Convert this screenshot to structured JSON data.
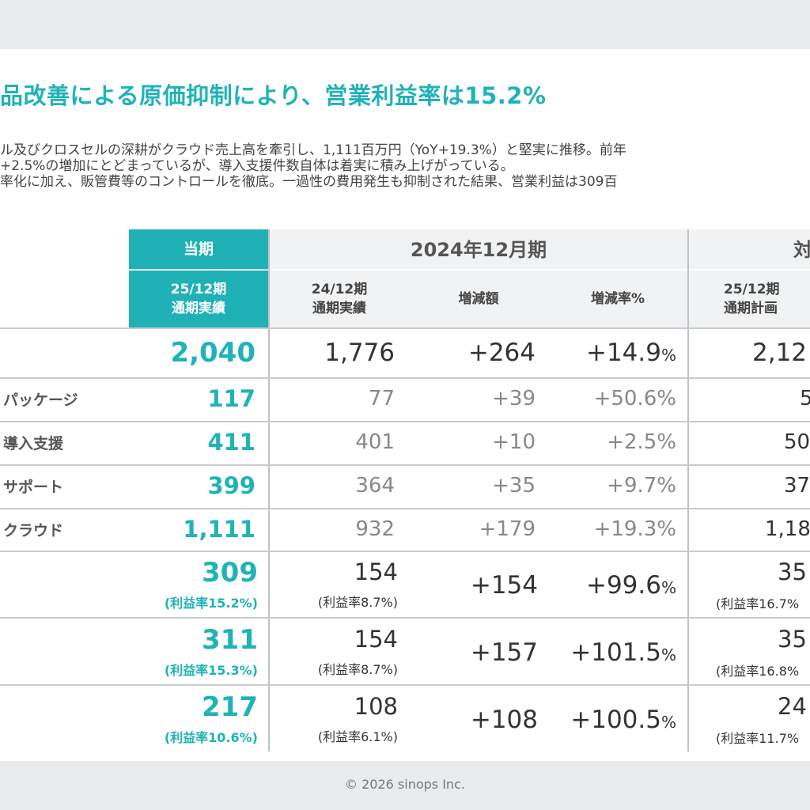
{
  "title": "品改善による原価抑制により、営業利益率は15.2%",
  "description": [
    "ル及びクロスセルの深耕がクラウド売上高を牽引し、1,111百万円（YoY+19.3%）と堅実に推移。前年",
    "+2.5%の増加にとどまっているが、導入支援件数自体は着実に積み上げがっている。",
    "率化に加え、販管費等のコントロールを徹底。一過性の費用発生も抑制された結果、営業利益は309百"
  ],
  "table": {
    "header": {
      "current": "当期",
      "current_sub1": "25/12期",
      "current_sub2": "通期実績",
      "prev_group": "2024年12月期",
      "prev_sub1a": "24/12期",
      "prev_sub1b": "通期実績",
      "diff": "増減額",
      "rate": "増減率%",
      "plan_group": "対",
      "plan_sub1": "25/12期",
      "plan_sub2": "通期計画"
    },
    "rows": [
      {
        "label": "",
        "cur": "2,040",
        "prev": "1,776",
        "diff": "+264",
        "rate": "+14.9",
        "rate_unit": "%",
        "plan": "2,12"
      },
      {
        "label": "パッケージ",
        "cur": "117",
        "prev": "77",
        "diff": "+39",
        "rate": "+50.6%",
        "plan": "5"
      },
      {
        "label": "導入支援",
        "cur": "411",
        "prev": "401",
        "diff": "+10",
        "rate": "+2.5%",
        "plan": "50"
      },
      {
        "label": "サポート",
        "cur": "399",
        "prev": "364",
        "diff": "+35",
        "rate": "+9.7%",
        "plan": "37"
      },
      {
        "label": "クラウド",
        "cur": "1,111",
        "prev": "932",
        "diff": "+179",
        "rate": "+19.3%",
        "plan": "1,18"
      },
      {
        "label": "",
        "cur": "309",
        "cur_ratio": "(利益率15.2%)",
        "prev": "154",
        "prev_ratio": "(利益率8.7%)",
        "diff": "+154",
        "rate": "+99.6",
        "rate_unit": "%",
        "plan": "35",
        "plan_ratio": "(利益率16.7%"
      },
      {
        "label": "",
        "cur": "311",
        "cur_ratio": "(利益率15.3%)",
        "prev": "154",
        "prev_ratio": "(利益率8.7%)",
        "diff": "+157",
        "rate": "+101.5",
        "rate_unit": "%",
        "plan": "35",
        "plan_ratio": "(利益率16.8%"
      },
      {
        "label": "",
        "cur": "217",
        "cur_ratio": "(利益率10.6%)",
        "prev": "108",
        "prev_ratio": "(利益率6.1%)",
        "diff": "+108",
        "rate": "+100.5",
        "rate_unit": "%",
        "plan": "24",
        "plan_ratio": "(利益率11.7%"
      }
    ]
  },
  "footer": "© 2026 sinops Inc.",
  "colors": {
    "accent": "#1fb3b8",
    "header_grey": "#f1f2f3",
    "background": "#e9ebed"
  }
}
